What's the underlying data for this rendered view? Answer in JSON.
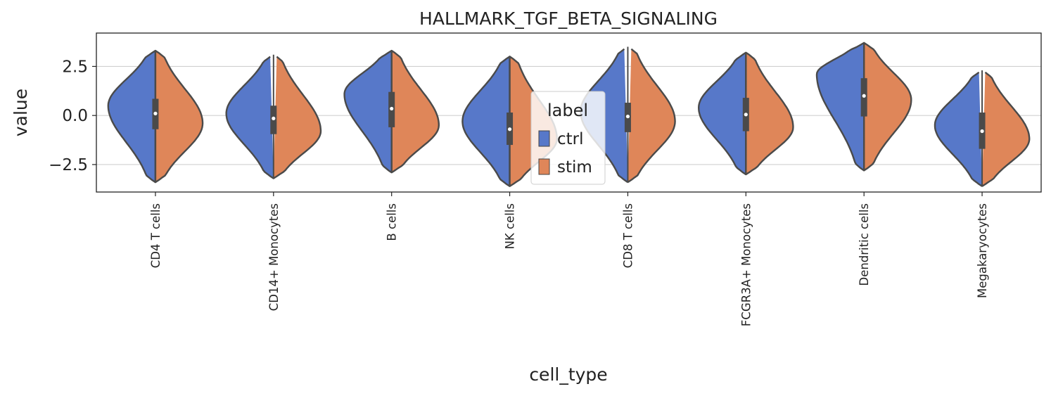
{
  "chart_data": {
    "type": "violin",
    "title": "HALLMARK_TGF_BETA_SIGNALING",
    "xlabel": "cell_type",
    "ylabel": "value",
    "ylim": [
      -3.9,
      4.2
    ],
    "yticks": [
      -2.5,
      0.0,
      2.5
    ],
    "ytick_labels": [
      "−2.5",
      "0.0",
      "2.5"
    ],
    "grid": "horizontal",
    "categories": [
      "CD4 T cells",
      "CD14+ Monocytes",
      "B cells",
      "NK cells",
      "CD8 T cells",
      "FCGR3A+ Monocytes",
      "Dendritic cells",
      "Megakaryocytes"
    ],
    "legend": {
      "title": "label",
      "position": "center",
      "entries": [
        {
          "name": "ctrl",
          "color": "#5778c9"
        },
        {
          "name": "stim",
          "color": "#df8659"
        }
      ]
    },
    "series": [
      {
        "name": "ctrl",
        "color": "#5778c9",
        "range": [
          [
            -3.4,
            3.3
          ],
          [
            -3.2,
            3.1
          ],
          [
            -2.9,
            3.3
          ],
          [
            -3.6,
            3.0
          ],
          [
            -3.4,
            3.5
          ],
          [
            -3.0,
            3.2
          ],
          [
            -2.8,
            3.7
          ],
          [
            -3.6,
            2.3
          ]
        ],
        "modes": [
          0.5,
          0.1,
          1.1,
          -0.3,
          0.2,
          0.4,
          2.1,
          -0.5
        ],
        "quartiles": [
          [
            -0.7,
            0.85
          ],
          [
            -0.95,
            0.5
          ],
          [
            -0.6,
            1.2
          ],
          [
            -1.5,
            0.15
          ],
          [
            -0.85,
            0.65
          ],
          [
            -0.8,
            0.9
          ],
          [
            -0.05,
            1.9
          ],
          [
            -1.7,
            0.15
          ]
        ],
        "medians": [
          0.1,
          -0.15,
          0.35,
          -0.7,
          -0.05,
          0.05,
          1.0,
          -0.8
        ]
      },
      {
        "name": "stim",
        "color": "#df8659",
        "range": [
          [
            -3.4,
            3.3
          ],
          [
            -3.2,
            3.1
          ],
          [
            -2.9,
            3.3
          ],
          [
            -3.6,
            3.0
          ],
          [
            -3.4,
            3.5
          ],
          [
            -3.0,
            3.2
          ],
          [
            -2.8,
            3.7
          ],
          [
            -3.6,
            2.3
          ]
        ],
        "modes": [
          -0.4,
          -0.8,
          -0.5,
          -1.2,
          -0.3,
          -0.6,
          0.8,
          -1.2
        ],
        "quartiles": [
          [
            -0.7,
            0.85
          ],
          [
            -0.95,
            0.5
          ],
          [
            -0.6,
            1.2
          ],
          [
            -1.5,
            0.15
          ],
          [
            -0.85,
            0.65
          ],
          [
            -0.8,
            0.9
          ],
          [
            -0.05,
            1.9
          ],
          [
            -1.7,
            0.15
          ]
        ],
        "medians": [
          0.1,
          -0.15,
          0.35,
          -0.7,
          -0.05,
          0.05,
          1.0,
          -0.8
        ]
      }
    ]
  }
}
